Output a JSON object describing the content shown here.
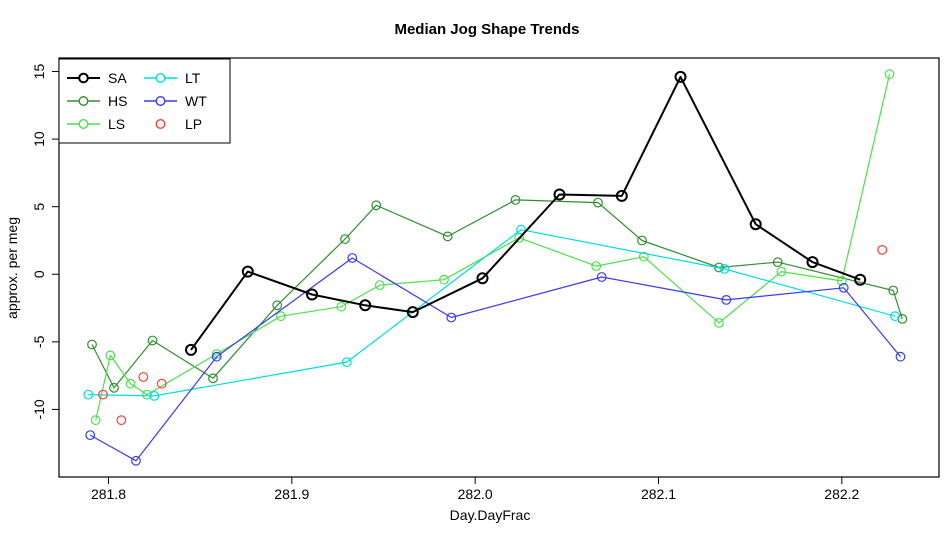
{
  "chart_data": {
    "type": "line",
    "title": "Median Jog Shape Trends",
    "xlabel": "Day.DayFrac",
    "ylabel": "approx. per meg",
    "xlim": [
      281.773,
      282.253
    ],
    "ylim": [
      -15,
      16
    ],
    "x_ticks": [
      "281.8",
      "281.9",
      "282.0",
      "282.1",
      "282.2"
    ],
    "x_tick_values": [
      281.8,
      281.9,
      282.0,
      282.1,
      282.2
    ],
    "y_ticks": [
      "-10",
      "-5",
      "0",
      "5",
      "10",
      "15"
    ],
    "y_tick_values": [
      -10,
      -5,
      0,
      5,
      10,
      15
    ],
    "grid": false,
    "legend_position": "top-left",
    "series": [
      {
        "name": "SA",
        "color": "#000000",
        "line": true,
        "marker": "open-circle",
        "points": [
          [
            281.845,
            -5.6
          ],
          [
            281.876,
            0.2
          ],
          [
            281.911,
            -1.5
          ],
          [
            281.94,
            -2.3
          ],
          [
            281.966,
            -2.8
          ],
          [
            282.004,
            -0.3
          ],
          [
            282.046,
            5.9
          ],
          [
            282.08,
            5.8
          ],
          [
            282.112,
            14.6
          ],
          [
            282.153,
            3.7
          ],
          [
            282.184,
            0.9
          ],
          [
            282.21,
            -0.4
          ]
        ]
      },
      {
        "name": "HS",
        "color": "#2f8f2f",
        "line": true,
        "marker": "open-circle",
        "points": [
          [
            281.791,
            -5.2
          ],
          [
            281.803,
            -8.4
          ],
          [
            281.824,
            -4.9
          ],
          [
            281.857,
            -7.7
          ],
          [
            281.892,
            -2.3
          ],
          [
            281.929,
            2.6
          ],
          [
            281.946,
            5.1
          ],
          [
            281.985,
            2.8
          ],
          [
            282.022,
            5.5
          ],
          [
            282.067,
            5.3
          ],
          [
            282.091,
            2.5
          ],
          [
            282.133,
            0.5
          ],
          [
            282.165,
            0.9
          ],
          [
            282.228,
            -1.2
          ],
          [
            282.233,
            -3.3
          ]
        ]
      },
      {
        "name": "LS",
        "color": "#4ce04c",
        "line": true,
        "marker": "open-circle",
        "points": [
          [
            281.793,
            -10.8
          ],
          [
            281.801,
            -6.0
          ],
          [
            281.812,
            -8.1
          ],
          [
            281.821,
            -8.9
          ],
          [
            281.859,
            -5.9
          ],
          [
            281.894,
            -3.1
          ],
          [
            281.927,
            -2.4
          ],
          [
            281.948,
            -0.8
          ],
          [
            281.983,
            -0.4
          ],
          [
            282.024,
            2.7
          ],
          [
            282.066,
            0.6
          ],
          [
            282.092,
            1.3
          ],
          [
            282.133,
            -3.6
          ],
          [
            282.167,
            0.2
          ],
          [
            282.2,
            -0.5
          ],
          [
            282.226,
            14.8
          ]
        ]
      },
      {
        "name": "LT",
        "color": "#00dede",
        "line": true,
        "marker": "open-circle",
        "points": [
          [
            281.789,
            -8.9
          ],
          [
            281.825,
            -9.0
          ],
          [
            281.93,
            -6.5
          ],
          [
            282.025,
            3.3
          ],
          [
            282.136,
            0.4
          ],
          [
            282.229,
            -3.1
          ]
        ]
      },
      {
        "name": "WT",
        "color": "#3a3af5",
        "line": true,
        "marker": "open-circle",
        "points": [
          [
            281.79,
            -11.9
          ],
          [
            281.815,
            -13.8
          ],
          [
            281.859,
            -6.1
          ],
          [
            281.933,
            1.2
          ],
          [
            281.987,
            -3.2
          ],
          [
            282.069,
            -0.2
          ],
          [
            282.137,
            -1.9
          ],
          [
            282.201,
            -1.0
          ],
          [
            282.232,
            -6.1
          ]
        ]
      },
      {
        "name": "LP",
        "color": "#ff3b3b",
        "line": false,
        "marker": "open-circle",
        "points": [
          [
            281.797,
            -8.9
          ],
          [
            281.807,
            -10.8
          ],
          [
            281.819,
            -7.6
          ],
          [
            281.829,
            -8.1
          ],
          [
            282.222,
            1.8
          ]
        ]
      }
    ],
    "legend": {
      "rows_per_column": 3,
      "labels": [
        "SA",
        "HS",
        "LS",
        "LT",
        "WT",
        "LP"
      ]
    }
  }
}
